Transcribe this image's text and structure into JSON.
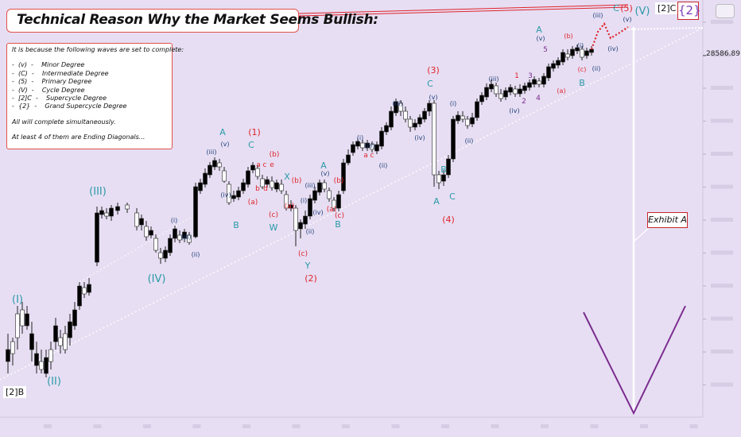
{
  "title": "Technical Reason Why the Market Seems Bullish:",
  "notes": {
    "intro": "It is because the following waves are set to complete:",
    "waves": [
      {
        "label": "-  (v)  -",
        "degree": "Minor Degree"
      },
      {
        "label": "-  (C)  -",
        "degree": "Intermediate Degree"
      },
      {
        "label": "-  (5)  -",
        "degree": "Primary Degree"
      },
      {
        "label": "-  (V)  -",
        "degree": "Cycle Degree"
      },
      {
        "label": "-  [2]C  -",
        "degree": "Supercycle Degree"
      },
      {
        "label": "-  {2}  -",
        "degree": "Grand Supercycle Degree"
      }
    ],
    "line1": "All will complete simultaneously.",
    "line2": "At least 4 of them are Ending Diagonals..."
  },
  "exhibit_label": "Exhibit A",
  "price_label": "28586.89",
  "left_corner_label": "[2]B",
  "top_labels": {
    "c": "[2]C",
    "grand": "{2}"
  },
  "colors": {
    "up": "#ffffff",
    "down": "#000000",
    "blue": "#2a86b8",
    "navy": "#1f3f7a",
    "red": "#e0242b",
    "purple": "#7b2d8e",
    "teal": "#2a9aa8",
    "trend": "#ffffff"
  },
  "chart_data": {
    "type": "candlestick",
    "price_axis_marked": 28586.89,
    "annotations_text": [
      "(I)",
      "(II)",
      "(III)",
      "(IV)",
      "(V)",
      "A",
      "B",
      "C",
      "(1)",
      "(2)",
      "(3)",
      "(4)",
      "(5)",
      "(a)",
      "(b)",
      "(c)",
      "X",
      "W",
      "Y",
      "(i)",
      "(ii)",
      "(iii)",
      "(iv)",
      "(v)",
      "1",
      "2",
      "3",
      "4",
      "5",
      "a",
      "b",
      "c",
      "d",
      "e"
    ]
  }
}
